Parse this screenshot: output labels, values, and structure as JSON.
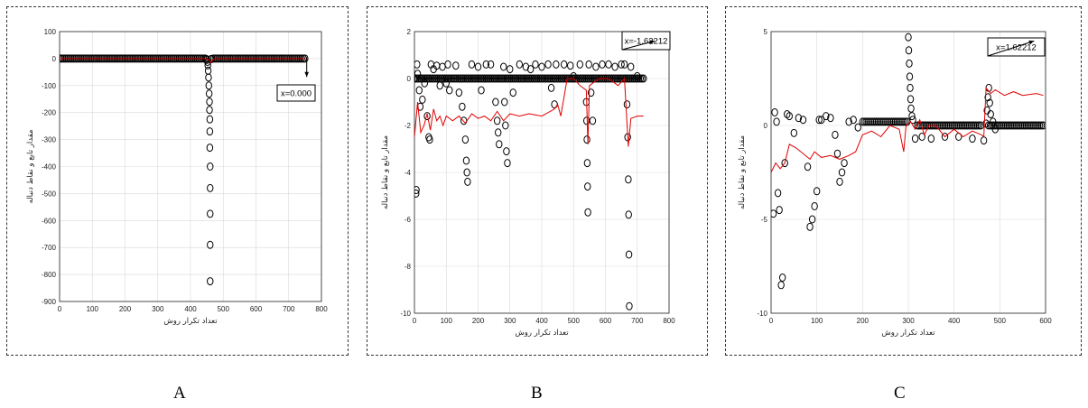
{
  "panels": [
    {
      "letter": "A"
    },
    {
      "letter": "B"
    },
    {
      "letter": "C"
    }
  ],
  "chart_data": [
    {
      "type": "scatter",
      "xlabel": "تعداد تکرار روش",
      "ylabel": "مقدار تابع و نقاط دنباله",
      "xlim": [
        0,
        800
      ],
      "ylim": [
        -900,
        100
      ],
      "xticks": [
        0,
        100,
        200,
        300,
        400,
        500,
        600,
        700,
        800
      ],
      "yticks": [
        100,
        0,
        -100,
        -200,
        -300,
        -400,
        -500,
        -600,
        -700,
        -800,
        -900
      ],
      "annotation": {
        "text": "x=0.000",
        "x": 755,
        "y": -68
      },
      "series": [
        {
          "kind": "markers",
          "color": "#000000",
          "dense": [
            [
              0,
              445,
              0
            ],
            [
              495,
              750,
              0
            ]
          ],
          "points": [
            [
              448,
              -1
            ],
            [
              450,
              -5
            ],
            [
              452,
              -12
            ],
            [
              453,
              -25
            ],
            [
              454,
              -45
            ],
            [
              455,
              -70
            ],
            [
              456,
              -100
            ],
            [
              457,
              -130
            ],
            [
              458,
              -160
            ],
            [
              458,
              -190
            ],
            [
              459,
              -225
            ],
            [
              459,
              -270
            ],
            [
              459,
              -330
            ],
            [
              460,
              -400
            ],
            [
              460,
              -480
            ],
            [
              460,
              -575
            ],
            [
              460,
              -690
            ],
            [
              460,
              -825
            ],
            [
              462,
              -2
            ],
            [
              465,
              -1
            ],
            [
              470,
              0
            ],
            [
              475,
              0
            ],
            [
              480,
              0
            ],
            [
              485,
              0
            ],
            [
              490,
              0
            ]
          ]
        },
        {
          "kind": "line",
          "color": "#e00000",
          "points": [
            [
              0,
              0
            ],
            [
              100,
              0
            ],
            [
              200,
              0
            ],
            [
              300,
              0
            ],
            [
              440,
              0
            ],
            [
              455,
              -3
            ],
            [
              462,
              -15
            ],
            [
              470,
              -2
            ],
            [
              480,
              0
            ],
            [
              750,
              0
            ]
          ]
        }
      ]
    },
    {
      "type": "scatter",
      "xlabel": "تعداد تکرار روش",
      "ylabel": "مقدار تابع و نقاط دنباله",
      "xlim": [
        0,
        800
      ],
      "ylim": [
        -10,
        2
      ],
      "xticks": [
        0,
        100,
        200,
        300,
        400,
        500,
        600,
        700,
        800
      ],
      "yticks": [
        2,
        0,
        -2,
        -4,
        -6,
        -8,
        -10
      ],
      "annotation": {
        "text": "x=-1.62212",
        "x": 755,
        "y": 1.6
      },
      "series": [
        {
          "kind": "markers",
          "color": "#000000",
          "dense": [
            [
              0,
              720,
              0
            ]
          ],
          "points": [
            [
              5,
              -4.9
            ],
            [
              6,
              -4.75
            ],
            [
              8,
              0.6
            ],
            [
              10,
              0.2
            ],
            [
              15,
              -0.5
            ],
            [
              18,
              -1.2
            ],
            [
              25,
              -0.9
            ],
            [
              32,
              -0.2
            ],
            [
              40,
              -1.6
            ],
            [
              45,
              -2.5
            ],
            [
              48,
              -2.6
            ],
            [
              52,
              0.6
            ],
            [
              60,
              0.4
            ],
            [
              70,
              0.55
            ],
            [
              80,
              -0.3
            ],
            [
              88,
              0.5
            ],
            [
              100,
              -0.2
            ],
            [
              105,
              0.6
            ],
            [
              110,
              -0.5
            ],
            [
              130,
              0.55
            ],
            [
              140,
              -0.6
            ],
            [
              150,
              -1.2
            ],
            [
              155,
              -1.8
            ],
            [
              160,
              -2.6
            ],
            [
              163,
              -3.5
            ],
            [
              165,
              -4.0
            ],
            [
              167,
              -4.4
            ],
            [
              180,
              0.6
            ],
            [
              200,
              0.5
            ],
            [
              210,
              -0.5
            ],
            [
              225,
              0.6
            ],
            [
              240,
              0.6
            ],
            [
              255,
              -1.0
            ],
            [
              260,
              -1.8
            ],
            [
              263,
              -2.3
            ],
            [
              266,
              -2.8
            ],
            [
              280,
              0.5
            ],
            [
              283,
              -1.0
            ],
            [
              286,
              -2.0
            ],
            [
              289,
              -3.1
            ],
            [
              292,
              -3.6
            ],
            [
              300,
              0.4
            ],
            [
              310,
              -0.6
            ],
            [
              330,
              0.6
            ],
            [
              350,
              0.5
            ],
            [
              365,
              0.4
            ],
            [
              380,
              0.6
            ],
            [
              400,
              0.5
            ],
            [
              420,
              0.6
            ],
            [
              430,
              -0.4
            ],
            [
              440,
              -1.1
            ],
            [
              445,
              0.6
            ],
            [
              470,
              0.6
            ],
            [
              490,
              0.55
            ],
            [
              500,
              0.1
            ],
            [
              520,
              0.6
            ],
            [
              540,
              -1.0
            ],
            [
              541,
              -1.8
            ],
            [
              542,
              -2.6
            ],
            [
              543,
              -3.6
            ],
            [
              544,
              -4.6
            ],
            [
              545,
              -5.7
            ],
            [
              548,
              0.6
            ],
            [
              555,
              -0.6
            ],
            [
              560,
              -1.8
            ],
            [
              570,
              0.5
            ],
            [
              590,
              0.6
            ],
            [
              610,
              0.6
            ],
            [
              630,
              0.5
            ],
            [
              650,
              0.6
            ],
            [
              660,
              0.6
            ],
            [
              668,
              -1.1
            ],
            [
              670,
              -2.5
            ],
            [
              672,
              -4.3
            ],
            [
              673,
              -5.8
            ],
            [
              674,
              -7.5
            ],
            [
              675,
              -9.7
            ],
            [
              680,
              0.5
            ],
            [
              700,
              0.1
            ]
          ]
        },
        {
          "kind": "line",
          "color": "#e00000",
          "points": [
            [
              0,
              -2.5
            ],
            [
              10,
              -1.0
            ],
            [
              20,
              -2.3
            ],
            [
              30,
              -2.0
            ],
            [
              40,
              -1.5
            ],
            [
              50,
              -2.2
            ],
            [
              60,
              -1.3
            ],
            [
              70,
              -1.8
            ],
            [
              80,
              -1.6
            ],
            [
              90,
              -2.0
            ],
            [
              100,
              -1.6
            ],
            [
              120,
              -1.8
            ],
            [
              140,
              -1.6
            ],
            [
              160,
              -1.9
            ],
            [
              180,
              -1.5
            ],
            [
              200,
              -1.7
            ],
            [
              220,
              -1.6
            ],
            [
              240,
              -1.8
            ],
            [
              260,
              -1.4
            ],
            [
              280,
              -1.8
            ],
            [
              300,
              -1.5
            ],
            [
              330,
              -1.6
            ],
            [
              360,
              -1.5
            ],
            [
              400,
              -1.6
            ],
            [
              440,
              -1.3
            ],
            [
              450,
              -1.1
            ],
            [
              460,
              -1.6
            ],
            [
              480,
              0.0
            ],
            [
              500,
              0.0
            ],
            [
              520,
              -0.3
            ],
            [
              540,
              -0.5
            ],
            [
              545,
              -2.8
            ],
            [
              550,
              -0.3
            ],
            [
              580,
              0.0
            ],
            [
              610,
              0.0
            ],
            [
              640,
              -0.3
            ],
            [
              660,
              0.0
            ],
            [
              672,
              -2.9
            ],
            [
              680,
              -1.7
            ],
            [
              700,
              -1.6
            ],
            [
              720,
              -1.6
            ]
          ]
        }
      ]
    },
    {
      "type": "scatter",
      "xlabel": "تعداد تکرار روش",
      "ylabel": "مقدار تابع و نقاط دنباله",
      "xlim": [
        0,
        600
      ],
      "ylim": [
        -10,
        5
      ],
      "xticks": [
        0,
        100,
        200,
        300,
        400,
        500,
        600
      ],
      "yticks": [
        5,
        0,
        -5,
        -10
      ],
      "annotation": {
        "text": "x=1.62212",
        "x": 575,
        "y": 4.5
      },
      "series": [
        {
          "kind": "markers",
          "color": "#000000",
          "dense": [
            [
              200,
              300,
              0.2
            ],
            [
              320,
              460,
              0
            ],
            [
              475,
              595,
              0
            ]
          ],
          "points": [
            [
              5,
              -4.7
            ],
            [
              8,
              0.7
            ],
            [
              12,
              0.2
            ],
            [
              15,
              -3.6
            ],
            [
              18,
              -4.5
            ],
            [
              22,
              -8.5
            ],
            [
              25,
              -8.1
            ],
            [
              30,
              -2.0
            ],
            [
              35,
              0.6
            ],
            [
              40,
              0.5
            ],
            [
              50,
              -0.4
            ],
            [
              60,
              0.4
            ],
            [
              70,
              0.3
            ],
            [
              80,
              -2.2
            ],
            [
              85,
              -5.4
            ],
            [
              90,
              -5.0
            ],
            [
              95,
              -4.3
            ],
            [
              100,
              -3.5
            ],
            [
              105,
              0.3
            ],
            [
              110,
              0.3
            ],
            [
              120,
              0.5
            ],
            [
              130,
              0.4
            ],
            [
              140,
              -0.5
            ],
            [
              145,
              -1.5
            ],
            [
              150,
              -3.0
            ],
            [
              155,
              -2.5
            ],
            [
              160,
              -2.0
            ],
            [
              170,
              0.2
            ],
            [
              180,
              0.3
            ],
            [
              190,
              -0.1
            ],
            [
              300,
              4.7
            ],
            [
              301,
              4.0
            ],
            [
              302,
              3.3
            ],
            [
              303,
              2.6
            ],
            [
              304,
              2.0
            ],
            [
              305,
              1.4
            ],
            [
              306,
              0.9
            ],
            [
              308,
              0.5
            ],
            [
              310,
              0.3
            ],
            [
              315,
              -0.7
            ],
            [
              330,
              -0.6
            ],
            [
              350,
              -0.7
            ],
            [
              380,
              -0.6
            ],
            [
              410,
              -0.6
            ],
            [
              440,
              -0.7
            ],
            [
              465,
              -0.8
            ],
            [
              470,
              0.1
            ],
            [
              472,
              0.8
            ],
            [
              474,
              1.5
            ],
            [
              476,
              2.0
            ],
            [
              478,
              1.2
            ],
            [
              480,
              0.6
            ],
            [
              485,
              0.2
            ],
            [
              490,
              -0.2
            ]
          ]
        },
        {
          "kind": "line",
          "color": "#e00000",
          "points": [
            [
              0,
              -2.5
            ],
            [
              10,
              -2.0
            ],
            [
              20,
              -2.3
            ],
            [
              30,
              -2.0
            ],
            [
              40,
              -1.0
            ],
            [
              55,
              -1.2
            ],
            [
              70,
              -1.5
            ],
            [
              85,
              -1.8
            ],
            [
              95,
              -1.4
            ],
            [
              110,
              -1.7
            ],
            [
              130,
              -1.6
            ],
            [
              150,
              -1.8
            ],
            [
              170,
              -1.6
            ],
            [
              185,
              -1.4
            ],
            [
              200,
              -0.5
            ],
            [
              220,
              -0.3
            ],
            [
              240,
              -0.6
            ],
            [
              260,
              0.0
            ],
            [
              280,
              -0.2
            ],
            [
              290,
              -1.4
            ],
            [
              295,
              0.0
            ],
            [
              305,
              0.2
            ],
            [
              315,
              -0.2
            ],
            [
              325,
              0.3
            ],
            [
              335,
              -0.5
            ],
            [
              345,
              0.0
            ],
            [
              360,
              0.0
            ],
            [
              380,
              -0.6
            ],
            [
              400,
              -0.2
            ],
            [
              420,
              -0.6
            ],
            [
              440,
              -0.3
            ],
            [
              460,
              -0.5
            ],
            [
              465,
              -0.6
            ],
            [
              470,
              2.0
            ],
            [
              480,
              1.7
            ],
            [
              490,
              1.9
            ],
            [
              510,
              1.6
            ],
            [
              530,
              1.8
            ],
            [
              550,
              1.6
            ],
            [
              580,
              1.7
            ],
            [
              595,
              1.6
            ]
          ]
        }
      ]
    }
  ]
}
